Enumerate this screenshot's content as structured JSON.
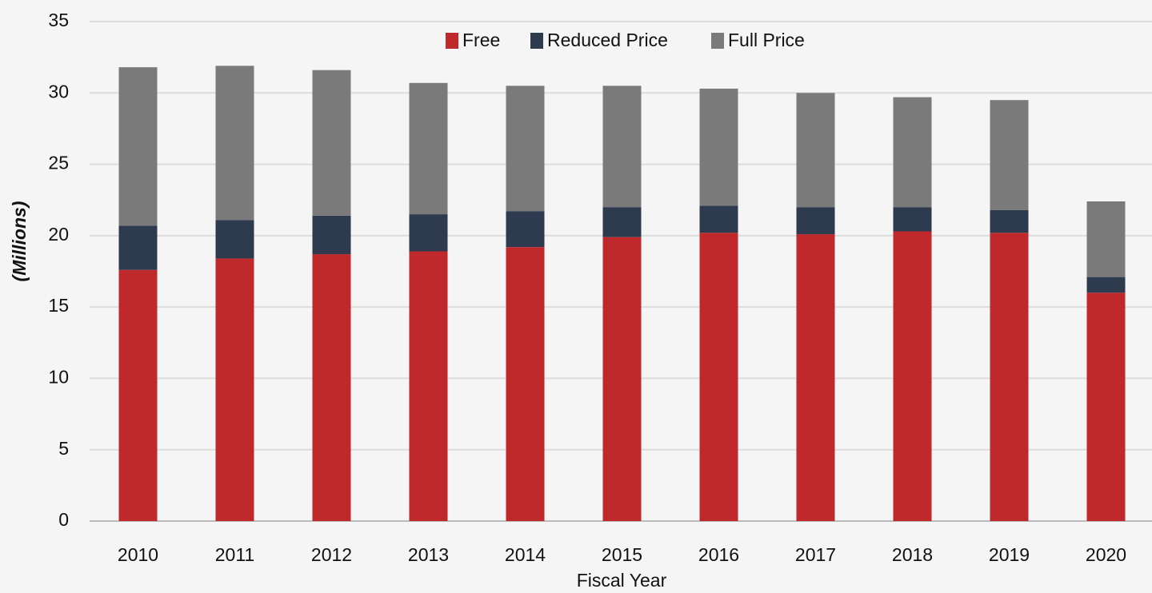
{
  "chart_data": {
    "type": "stacked_bar",
    "y_label": "(Millions)",
    "x_label": "Fiscal Year",
    "categories": [
      "2010",
      "2011",
      "2012",
      "2013",
      "2014",
      "2015",
      "2016",
      "2017",
      "2018",
      "2019",
      "2020"
    ],
    "series": [
      {
        "name": "Free",
        "color": "#c0292b",
        "values": [
          17.6,
          18.4,
          18.7,
          18.9,
          19.2,
          19.9,
          20.2,
          20.1,
          20.3,
          20.2,
          16.0
        ]
      },
      {
        "name": "Reduced Price",
        "color": "#2e3a4e",
        "values": [
          3.1,
          2.7,
          2.7,
          2.6,
          2.5,
          2.1,
          1.9,
          1.9,
          1.7,
          1.6,
          1.1
        ]
      },
      {
        "name": "Full Price",
        "color": "#7a7a7a",
        "values": [
          11.1,
          10.8,
          10.2,
          9.2,
          8.8,
          8.5,
          8.2,
          8.0,
          7.7,
          7.7,
          5.3
        ]
      }
    ],
    "ylim": [
      0,
      35
    ],
    "yticks": [
      0,
      5,
      10,
      15,
      20,
      25,
      30,
      35
    ],
    "grid": true
  }
}
